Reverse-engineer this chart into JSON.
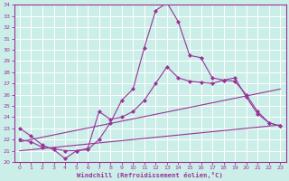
{
  "bg_color": "#cceee8",
  "grid_color": "#ffffff",
  "line_color": "#993399",
  "xlabel": "Windchill (Refroidissement éolien,°C)",
  "xlim": [
    -0.5,
    23.5
  ],
  "ylim": [
    20,
    34
  ],
  "xticks": [
    0,
    1,
    2,
    3,
    4,
    5,
    6,
    7,
    8,
    9,
    10,
    11,
    12,
    13,
    14,
    15,
    16,
    17,
    18,
    19,
    20,
    21,
    22,
    23
  ],
  "yticks": [
    20,
    21,
    22,
    23,
    24,
    25,
    26,
    27,
    28,
    29,
    30,
    31,
    32,
    33,
    34
  ],
  "line1_x": [
    0,
    1,
    2,
    3,
    4,
    5,
    6,
    7,
    8,
    9,
    10,
    11,
    12,
    13,
    14,
    15,
    16,
    17,
    18,
    19,
    20,
    21,
    22,
    23
  ],
  "line1_y": [
    23.0,
    22.3,
    21.5,
    21.1,
    20.3,
    21.0,
    21.1,
    22.0,
    23.5,
    25.5,
    26.5,
    30.2,
    33.5,
    34.2,
    32.5,
    29.5,
    29.3,
    27.5,
    27.3,
    27.5,
    25.8,
    24.3,
    23.5,
    23.2
  ],
  "line2_x": [
    0,
    1,
    2,
    3,
    4,
    5,
    6,
    7,
    8,
    9,
    10,
    11,
    12,
    13,
    14,
    15,
    16,
    17,
    18,
    19,
    20,
    21,
    22,
    23
  ],
  "line2_y": [
    22.0,
    21.8,
    21.3,
    21.2,
    21.0,
    21.0,
    21.2,
    24.5,
    23.8,
    24.0,
    24.5,
    25.5,
    27.0,
    28.5,
    27.5,
    27.2,
    27.1,
    27.0,
    27.3,
    27.2,
    26.0,
    24.5,
    23.5,
    23.2
  ],
  "trend1_x": [
    0,
    23
  ],
  "trend1_y": [
    21.8,
    26.5
  ],
  "trend2_x": [
    0,
    23
  ],
  "trend2_y": [
    21.0,
    23.3
  ]
}
